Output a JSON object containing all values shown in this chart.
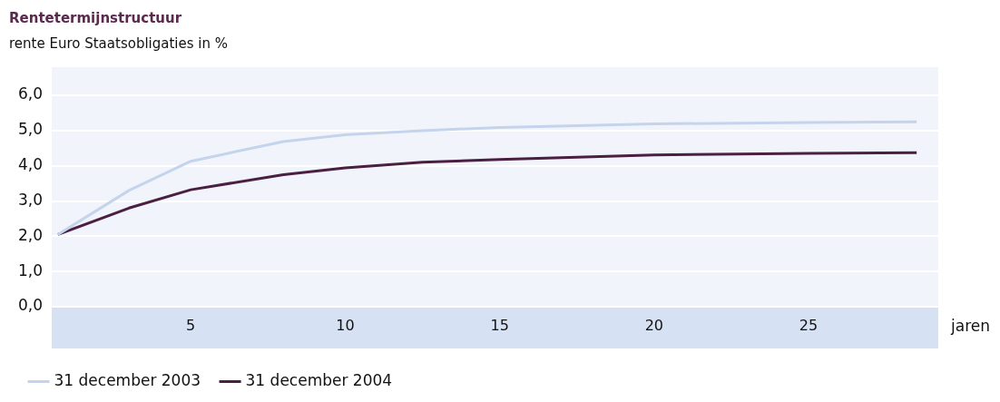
{
  "chart_data": {
    "type": "line",
    "title": "Rentetermijnstructuur",
    "subtitle": "rente Euro Staatsobligaties in %",
    "xlabel": "jaren",
    "x": [
      0.7,
      3,
      5,
      8,
      10,
      12.5,
      15,
      20,
      25,
      28.5
    ],
    "series": [
      {
        "name": "31 december 2003",
        "color": "#c4d4ec",
        "values": [
          2.05,
          3.3,
          4.13,
          4.69,
          4.88,
          5.0,
          5.09,
          5.19,
          5.23,
          5.25
        ]
      },
      {
        "name": "31 december 2004",
        "color": "#4a1f42",
        "values": [
          2.05,
          2.8,
          3.32,
          3.75,
          3.94,
          4.1,
          4.18,
          4.31,
          4.35,
          4.37
        ]
      }
    ],
    "xlim": [
      0.5,
      29.2
    ],
    "xticks": [
      5,
      10,
      15,
      20,
      25
    ],
    "ylim": [
      0,
      6.8
    ],
    "yticks": [
      {
        "value": 0,
        "label": "0,0"
      },
      {
        "value": 1,
        "label": "1,0"
      },
      {
        "value": 2,
        "label": "2,0"
      },
      {
        "value": 3,
        "label": "3,0"
      },
      {
        "value": 4,
        "label": "4,0"
      },
      {
        "value": 5,
        "label": "5,0"
      },
      {
        "value": 6,
        "label": "6,0"
      }
    ],
    "grid": "y",
    "legend": "bottom"
  }
}
